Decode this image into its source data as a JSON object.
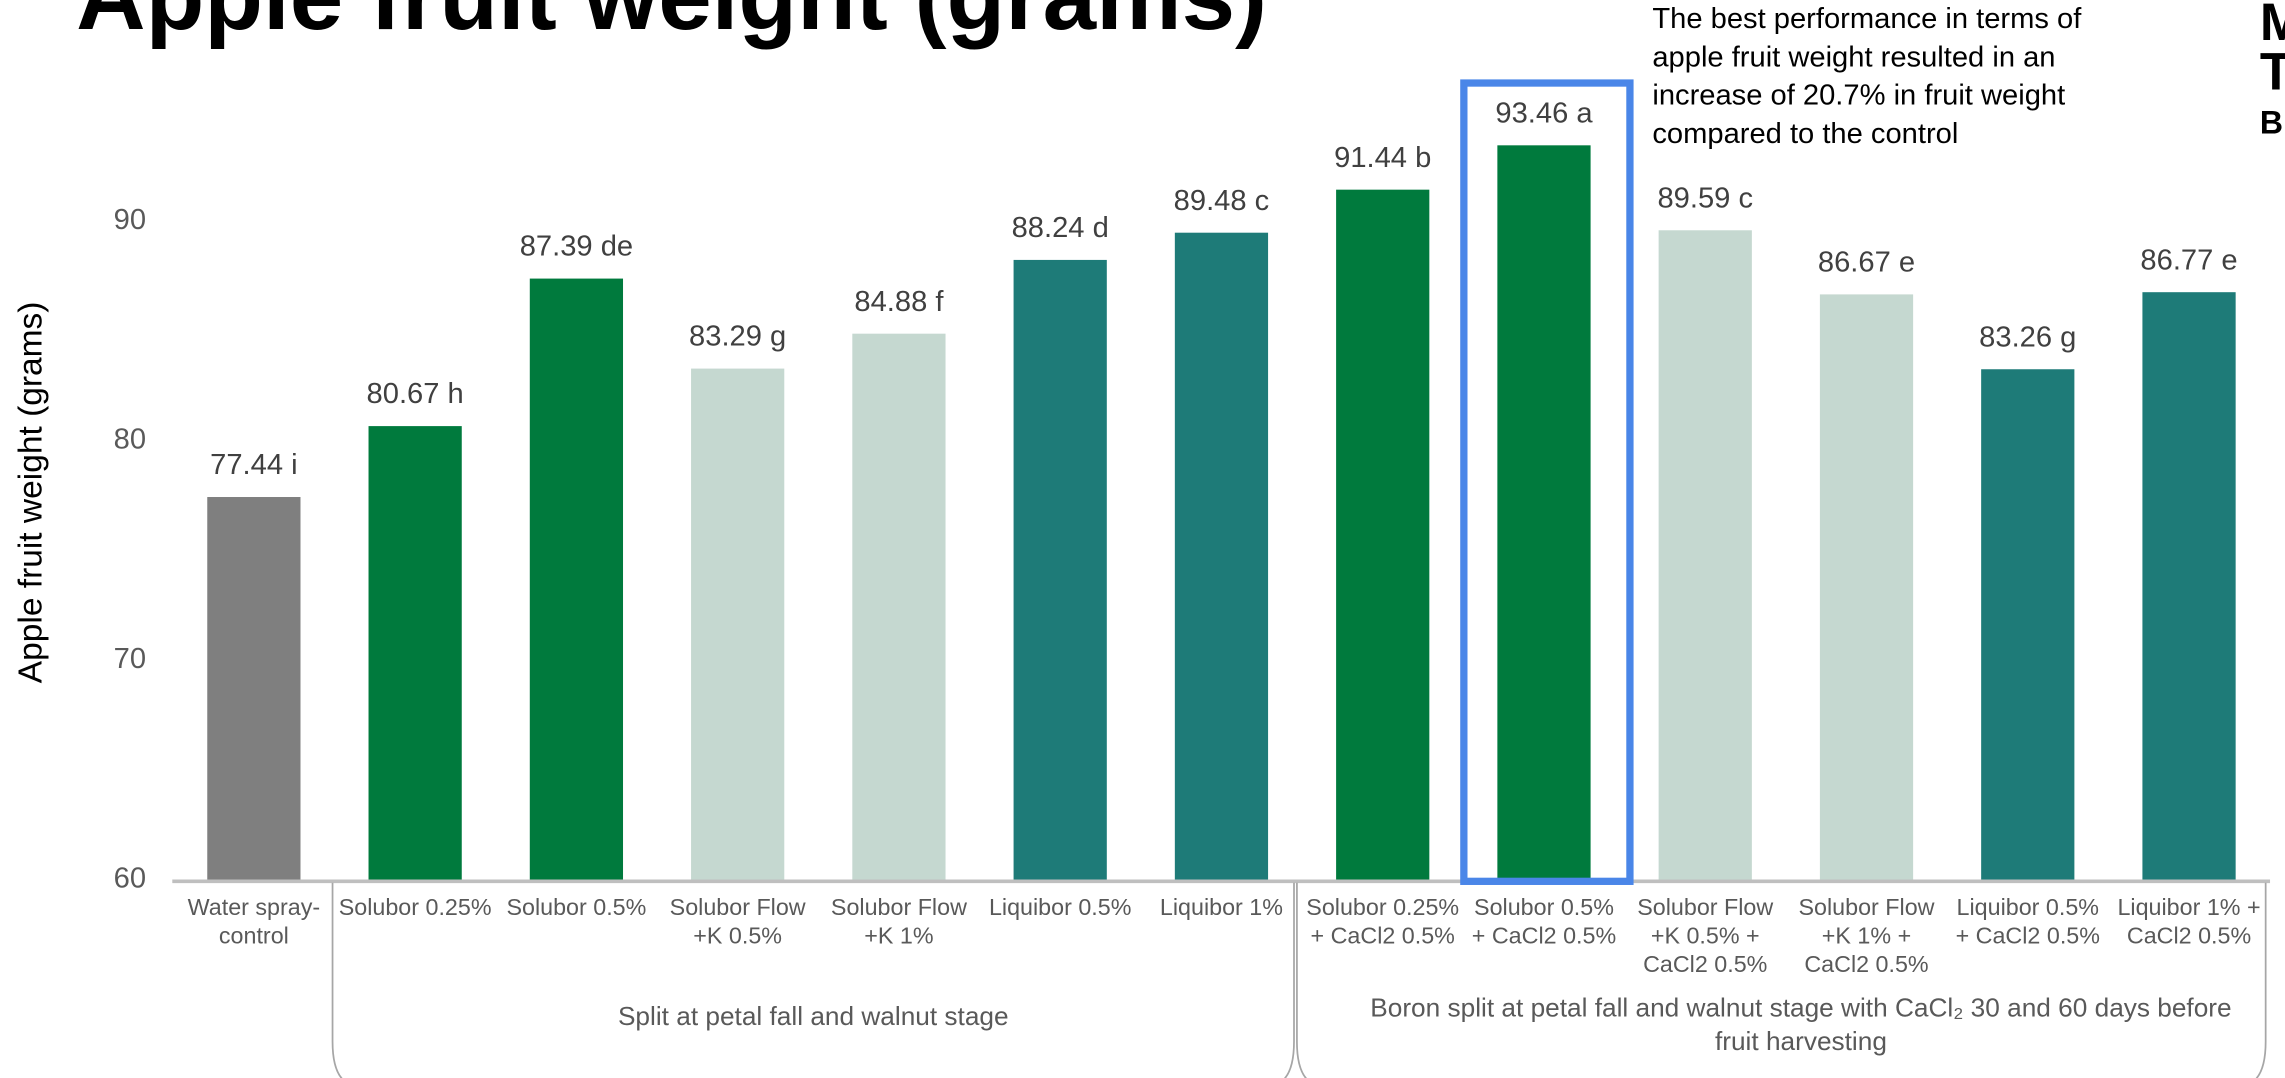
{
  "chart_data": {
    "type": "bar",
    "title": "Apple fruit weight (grams)",
    "y_label": "Apple fruit weight  (grams)",
    "annotation": [
      "The best performance in terms of",
      "apple fruit weight resulted in an",
      "increase of 20.7% in fruit weight",
      "compared to the control"
    ],
    "logo": [
      "M",
      "T",
      "B"
    ],
    "categories": [
      [
        "Water spray-",
        "control"
      ],
      [
        "Solubor 0.25%"
      ],
      [
        "Solubor 0.5%"
      ],
      [
        "Solubor Flow",
        "+K 0.5%"
      ],
      [
        "Solubor Flow",
        "+K 1%"
      ],
      [
        "Liquibor 0.5%"
      ],
      [
        "Liquibor 1%"
      ],
      [
        "Solubor 0.25%",
        "+ CaCl2 0.5%"
      ],
      [
        "Solubor 0.5%",
        "+ CaCl2 0.5%"
      ],
      [
        "Solubor Flow",
        "+K 0.5% +",
        "CaCl2 0.5%"
      ],
      [
        "Solubor Flow",
        "+K 1% +",
        "CaCl2 0.5%"
      ],
      [
        "Liquibor 0.5%",
        "+ CaCl2 0.5%"
      ],
      [
        "Liquibor 1% +",
        "CaCl2 0.5%"
      ]
    ],
    "values": [
      77.44,
      80.67,
      87.39,
      83.29,
      84.88,
      88.24,
      89.48,
      91.44,
      93.46,
      89.59,
      86.67,
      83.26,
      86.77
    ],
    "value_labels": [
      "77.44 i",
      "80.67 h",
      "87.39 de",
      "83.29 g",
      "84.88 f",
      "88.24 d",
      "89.48 c",
      "91.44 b",
      "93.46 a",
      "89.59 c",
      "86.67 e",
      "83.26 g",
      "86.77 e"
    ],
    "colors": [
      "#7f7f7f",
      "#007a3d",
      "#007a3d",
      "#c5d8d0",
      "#c5d8d0",
      "#1e7b78",
      "#1e7b78",
      "#007a3d",
      "#007a3d",
      "#c5d8d0",
      "#c5d8d0",
      "#1e7b78",
      "#1e7b78"
    ],
    "groups": [
      {
        "label": [
          "Split at petal fall and walnut stage"
        ]
      },
      {
        "label": [
          "Boron split at petal fall and walnut stage with CaCl₂ 30 and 60 days before",
          "fruit harvesting"
        ]
      }
    ],
    "highlight_color": "#4a86e8",
    "ylim": [
      60,
      95
    ],
    "yticks": [
      60,
      70,
      80,
      90
    ]
  }
}
